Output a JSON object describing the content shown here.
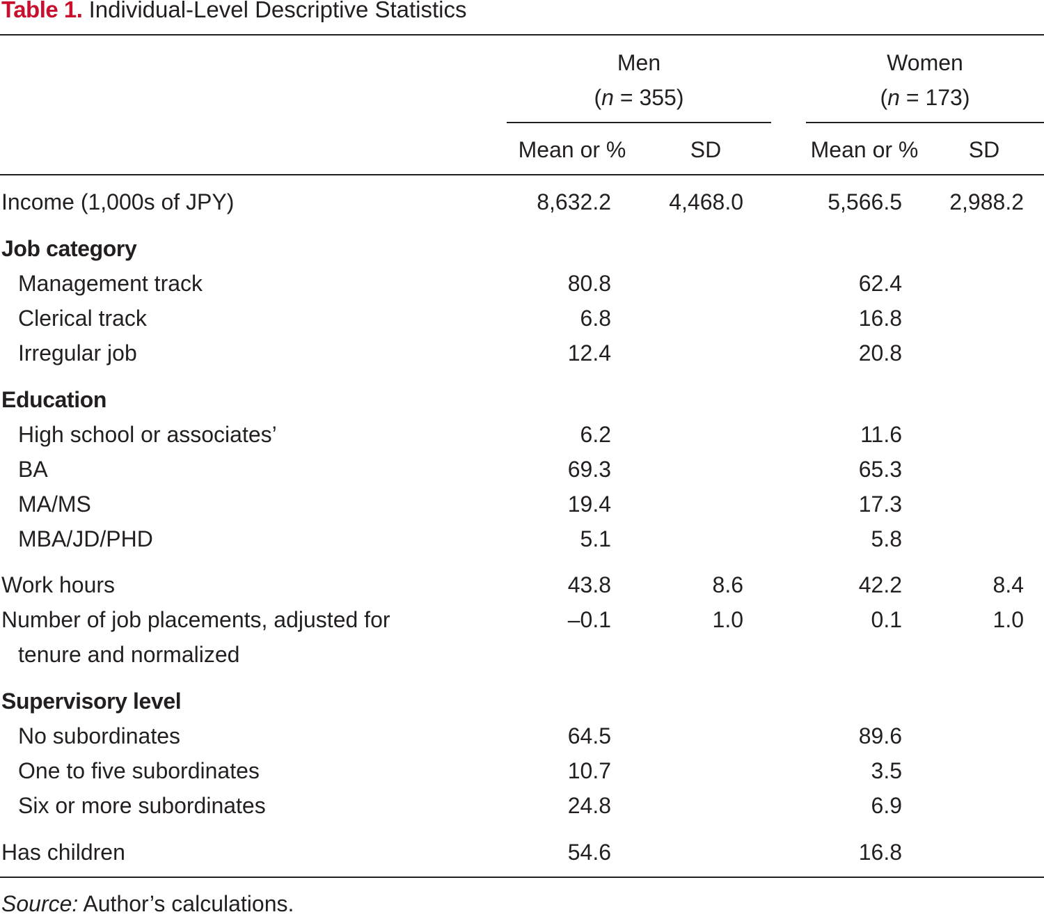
{
  "caption": {
    "label": "Table 1.",
    "title": "Individual-Level Descriptive Statistics"
  },
  "groups": [
    {
      "name": "Men",
      "n_prefix": "(",
      "n_symbol": "n",
      "n_value": " = 355)"
    },
    {
      "name": "Women",
      "n_prefix": "(",
      "n_symbol": "n",
      "n_value": " = 173)"
    }
  ],
  "column_headers": [
    "Mean or %",
    "SD",
    "Mean or %",
    "SD"
  ],
  "rows": [
    {
      "label": "Income (1,000s of JPY)",
      "type": "data",
      "values": [
        "8,632.2",
        "4,468.0",
        "5,566.5",
        "2,988.2"
      ]
    },
    {
      "label": "Job category",
      "type": "section",
      "values": [
        "",
        "",
        "",
        ""
      ]
    },
    {
      "label": "Management track",
      "type": "sub",
      "values": [
        "80.8",
        "",
        "62.4",
        ""
      ]
    },
    {
      "label": "Clerical track",
      "type": "sub",
      "values": [
        "6.8",
        "",
        "16.8",
        ""
      ]
    },
    {
      "label": "Irregular job",
      "type": "sub",
      "values": [
        "12.4",
        "",
        "20.8",
        ""
      ]
    },
    {
      "label": "Education",
      "type": "section",
      "values": [
        "",
        "",
        "",
        ""
      ]
    },
    {
      "label": "High school or associates’",
      "type": "sub",
      "values": [
        "6.2",
        "",
        "11.6",
        ""
      ]
    },
    {
      "label": "BA",
      "type": "sub",
      "values": [
        "69.3",
        "",
        "65.3",
        ""
      ]
    },
    {
      "label": "MA/MS",
      "type": "sub",
      "values": [
        "19.4",
        "",
        "17.3",
        ""
      ]
    },
    {
      "label": "MBA/JD/PHD",
      "type": "sub",
      "values": [
        "5.1",
        "",
        "5.8",
        ""
      ]
    },
    {
      "label": "Work hours",
      "type": "data",
      "values": [
        "43.8",
        "8.6",
        "42.2",
        "8.4"
      ]
    },
    {
      "label": "Number of job placements, adjusted for",
      "label_cont": "tenure and normalized",
      "type": "data",
      "values": [
        "–0.1",
        "1.0",
        "0.1",
        "1.0"
      ]
    },
    {
      "label": "Supervisory level",
      "type": "section",
      "values": [
        "",
        "",
        "",
        ""
      ]
    },
    {
      "label": "No subordinates",
      "type": "sub",
      "values": [
        "64.5",
        "",
        "89.6",
        ""
      ]
    },
    {
      "label": "One to five subordinates",
      "type": "sub",
      "values": [
        "10.7",
        "",
        "3.5",
        ""
      ]
    },
    {
      "label": "Six or more subordinates",
      "type": "sub",
      "values": [
        "24.8",
        "",
        "6.9",
        ""
      ]
    },
    {
      "label": "Has children",
      "type": "data",
      "values": [
        "54.6",
        "",
        "16.8",
        ""
      ]
    }
  ],
  "source": {
    "label": "Source:",
    "text": " Author’s calculations."
  }
}
